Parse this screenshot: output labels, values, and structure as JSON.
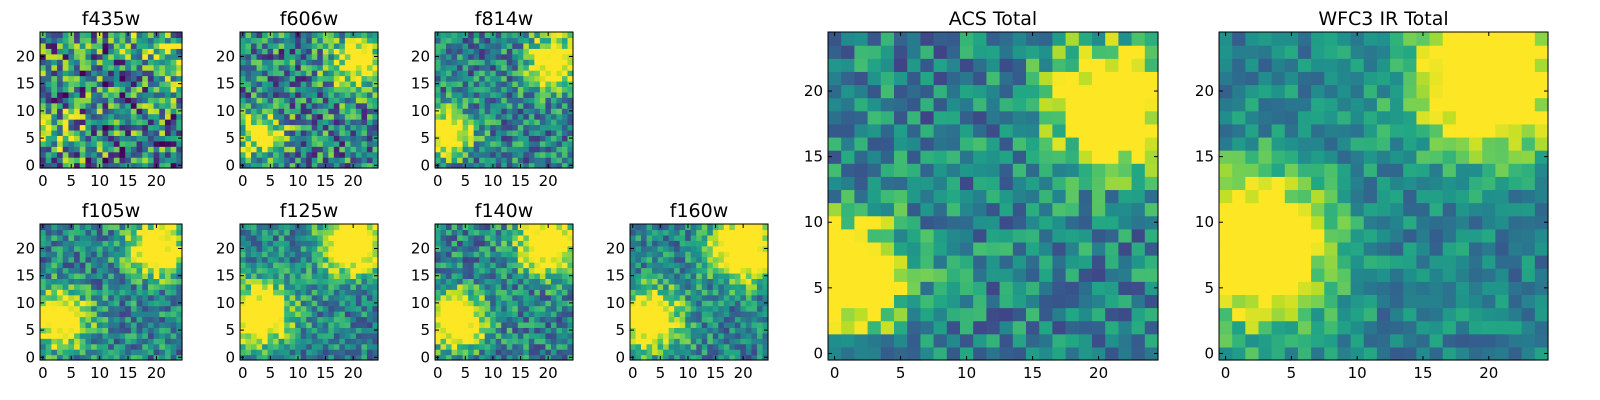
{
  "chart_data": [
    {
      "type": "heatmap",
      "title": "f435w",
      "xticks": [
        0,
        5,
        10,
        15,
        20
      ],
      "yticks": [
        0,
        5,
        10,
        15,
        20
      ],
      "xlim": [
        -0.5,
        24.5
      ],
      "ylim": [
        -0.5,
        24.5
      ],
      "grid": false,
      "colormap": "viridis",
      "rows": 25,
      "cols": 25,
      "seed": 11,
      "hotspots": [
        [
          3,
          6,
          0.3,
          3
        ],
        [
          21,
          20,
          0.3,
          4
        ]
      ],
      "noise": 0.95,
      "values_note": ""
    },
    {
      "type": "heatmap",
      "title": "f606w",
      "xticks": [
        0,
        5,
        10,
        15,
        20
      ],
      "yticks": [
        0,
        5,
        10,
        15,
        20
      ],
      "xlim": [
        -0.5,
        24.5
      ],
      "ylim": [
        -0.5,
        24.5
      ],
      "grid": false,
      "colormap": "viridis",
      "rows": 25,
      "cols": 25,
      "seed": 23,
      "hotspots": [
        [
          3,
          6,
          0.7,
          3
        ],
        [
          21,
          19,
          0.8,
          3.5
        ]
      ],
      "noise": 0.75,
      "values_note": ""
    },
    {
      "type": "heatmap",
      "title": "f814w",
      "xticks": [
        0,
        5,
        10,
        15,
        20
      ],
      "yticks": [
        0,
        5,
        10,
        15,
        20
      ],
      "xlim": [
        -0.5,
        24.5
      ],
      "ylim": [
        -0.5,
        24.5
      ],
      "grid": false,
      "colormap": "viridis",
      "rows": 25,
      "cols": 25,
      "seed": 37,
      "hotspots": [
        [
          2,
          6,
          0.9,
          2.8
        ],
        [
          21,
          19,
          0.9,
          3.2
        ]
      ],
      "noise": 0.6,
      "values_note": ""
    },
    {
      "type": "heatmap",
      "title": "f105w",
      "xticks": [
        0,
        5,
        10,
        15,
        20
      ],
      "yticks": [
        0,
        5,
        10,
        15,
        20
      ],
      "xlim": [
        -0.5,
        24.5
      ],
      "ylim": [
        -0.5,
        24.5
      ],
      "grid": false,
      "colormap": "viridis",
      "rows": 25,
      "cols": 25,
      "seed": 41,
      "hotspots": [
        [
          3,
          7,
          0.9,
          3.5
        ],
        [
          20,
          20,
          0.9,
          3.5
        ]
      ],
      "noise": 0.55,
      "values_note": ""
    },
    {
      "type": "heatmap",
      "title": "f125w",
      "xticks": [
        0,
        5,
        10,
        15,
        20
      ],
      "yticks": [
        0,
        5,
        10,
        15,
        20
      ],
      "xlim": [
        -0.5,
        24.5
      ],
      "ylim": [
        -0.5,
        24.5
      ],
      "grid": false,
      "colormap": "viridis",
      "rows": 25,
      "cols": 25,
      "seed": 53,
      "hotspots": [
        [
          3,
          8,
          0.9,
          4
        ],
        [
          20,
          21,
          1.0,
          4
        ]
      ],
      "noise": 0.5,
      "values_note": ""
    },
    {
      "type": "heatmap",
      "title": "f140w",
      "xticks": [
        0,
        5,
        10,
        15,
        20
      ],
      "yticks": [
        0,
        5,
        10,
        15,
        20
      ],
      "xlim": [
        -0.5,
        24.5
      ],
      "ylim": [
        -0.5,
        24.5
      ],
      "grid": false,
      "colormap": "viridis",
      "rows": 25,
      "cols": 25,
      "seed": 67,
      "hotspots": [
        [
          3,
          7,
          0.9,
          3.8
        ],
        [
          20,
          21,
          1.0,
          3.8
        ]
      ],
      "noise": 0.55,
      "values_note": ""
    },
    {
      "type": "heatmap",
      "title": "f160w",
      "xticks": [
        0,
        5,
        10,
        15,
        20
      ],
      "yticks": [
        0,
        5,
        10,
        15,
        20
      ],
      "xlim": [
        -0.5,
        24.5
      ],
      "ylim": [
        -0.5,
        24.5
      ],
      "grid": false,
      "colormap": "viridis",
      "rows": 25,
      "cols": 25,
      "seed": 79,
      "hotspots": [
        [
          3,
          7,
          0.9,
          4
        ],
        [
          20,
          20,
          1.0,
          4
        ]
      ],
      "noise": 0.5,
      "values_note": ""
    },
    {
      "type": "heatmap",
      "title": "ACS Total",
      "xticks": [
        0,
        5,
        10,
        15,
        20
      ],
      "yticks": [
        0,
        5,
        10,
        15,
        20
      ],
      "xlim": [
        -0.5,
        24.5
      ],
      "ylim": [
        -0.5,
        24.5
      ],
      "grid": false,
      "colormap": "viridis",
      "rows": 25,
      "cols": 25,
      "seed": 97,
      "hotspots": [
        [
          1,
          6,
          1.0,
          3
        ],
        [
          21,
          19,
          1.0,
          3.2
        ]
      ],
      "noise": 0.5,
      "values_note": ""
    },
    {
      "type": "heatmap",
      "title": "WFC3 IR Total",
      "xticks": [
        0,
        5,
        10,
        15,
        20
      ],
      "yticks": [
        0,
        5,
        10,
        15,
        20
      ],
      "xlim": [
        -0.5,
        24.5
      ],
      "ylim": [
        -0.5,
        24.5
      ],
      "grid": false,
      "colormap": "viridis",
      "rows": 25,
      "cols": 25,
      "seed": 101,
      "hotspots": [
        [
          2,
          8,
          0.95,
          4
        ],
        [
          20,
          21,
          1.0,
          4
        ]
      ],
      "noise": 0.35,
      "values_note": ""
    }
  ]
}
